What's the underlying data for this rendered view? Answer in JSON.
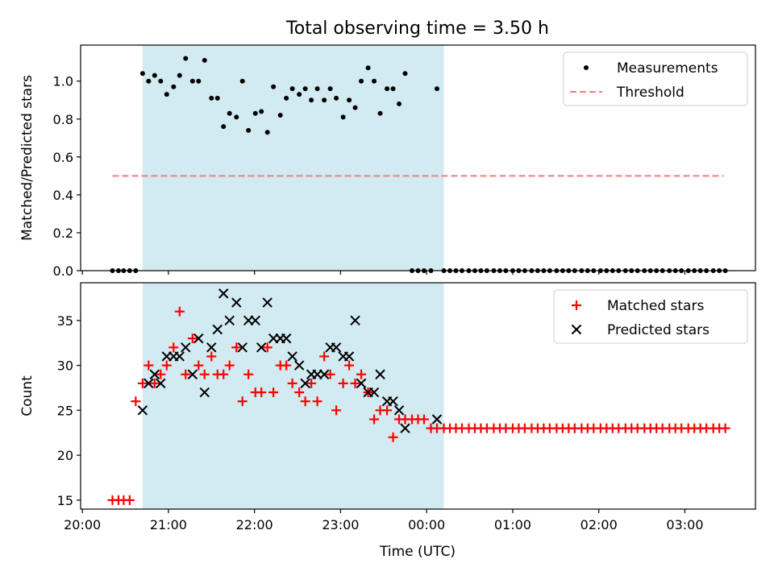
{
  "figure": {
    "title": "Total observing time = 3.50 h",
    "xlabel": "Time (UTC)",
    "xtick_labels": [
      "20:00",
      "21:00",
      "22:00",
      "23:00",
      "00:00",
      "01:00",
      "02:00",
      "03:00"
    ]
  },
  "colors": {
    "shade": "#add8e6",
    "measurements": "#000000",
    "threshold": "#f47c7c",
    "matched": "#ff0000",
    "predicted": "#000000"
  },
  "chart_data": [
    {
      "type": "scatter",
      "ylabel": "Matched/Predicted stars",
      "xlim": [
        19.98,
        27.82
      ],
      "ylim": [
        0,
        1.19
      ],
      "yticks": [
        "0.0",
        "0.2",
        "0.4",
        "0.6",
        "0.8",
        "1.0"
      ],
      "x_unit": "hours after 00:00 on first night",
      "shaded_interval": [
        20.7,
        24.2
      ],
      "threshold": {
        "name": "Threshold",
        "value": 0.5,
        "x_range": [
          20.35,
          27.45
        ]
      },
      "legend": [
        "Measurements",
        "Threshold"
      ],
      "legend_position": "upper right",
      "series": [
        {
          "name": "Measurements",
          "x": [
            20.35,
            20.42,
            20.48,
            20.55,
            20.62,
            20.7,
            20.77,
            20.84,
            20.91,
            20.98,
            21.06,
            21.13,
            21.2,
            21.28,
            21.35,
            21.42,
            21.5,
            21.57,
            21.64,
            21.71,
            21.79,
            21.86,
            21.93,
            22.01,
            22.08,
            22.15,
            22.22,
            22.3,
            22.37,
            22.44,
            22.52,
            22.59,
            22.66,
            22.73,
            22.81,
            22.88,
            22.95,
            23.03,
            23.1,
            23.17,
            23.24,
            23.32,
            23.39,
            23.46,
            23.54,
            23.61,
            23.68,
            23.75,
            23.83,
            23.9,
            23.97,
            24.05,
            24.12,
            24.2,
            24.27,
            24.34,
            24.41,
            24.49,
            24.56,
            24.63,
            24.7,
            24.78,
            24.85,
            24.92,
            25.0,
            25.07,
            25.14,
            25.22,
            25.29,
            25.36,
            25.43,
            25.51,
            25.58,
            25.65,
            25.72,
            25.8,
            25.87,
            25.94,
            26.02,
            26.09,
            26.16,
            26.23,
            26.31,
            26.38,
            26.45,
            26.53,
            26.6,
            26.67,
            26.74,
            26.82,
            26.89,
            26.96,
            27.04,
            27.11,
            27.18,
            27.25,
            27.33,
            27.4,
            27.47
          ],
          "y": [
            0,
            0,
            0,
            0,
            0,
            1.04,
            1.0,
            1.03,
            1.0,
            0.93,
            0.97,
            1.03,
            1.12,
            1.0,
            1.0,
            1.11,
            0.91,
            0.91,
            0.76,
            0.83,
            0.81,
            1.0,
            0.74,
            0.83,
            0.84,
            0.73,
            0.97,
            0.82,
            0.91,
            0.96,
            0.93,
            0.96,
            0.9,
            0.96,
            0.9,
            0.96,
            0.91,
            0.81,
            0.9,
            0.86,
            1.0,
            1.07,
            1.0,
            0.83,
            0.96,
            0.96,
            0.88,
            1.04,
            0,
            0,
            0,
            0,
            0.96,
            0,
            0,
            0,
            0,
            0,
            0,
            0,
            0,
            0,
            0,
            0,
            0,
            0,
            0,
            0,
            0,
            0,
            0,
            0,
            0,
            0,
            0,
            0,
            0,
            0,
            0,
            0,
            0,
            0,
            0,
            0,
            0,
            0,
            0,
            0,
            0,
            0,
            0,
            0,
            0,
            0,
            0,
            0,
            0,
            0,
            0
          ]
        }
      ]
    },
    {
      "type": "scatter",
      "ylabel": "Count",
      "xlim": [
        19.98,
        27.82
      ],
      "ylim": [
        14,
        39.2
      ],
      "yticks": [
        "15",
        "20",
        "25",
        "30",
        "35"
      ],
      "x_unit": "hours after 00:00 on first night",
      "shaded_interval": [
        20.7,
        24.2
      ],
      "legend": [
        "Matched stars",
        "Predicted stars"
      ],
      "legend_position": "upper right",
      "series": [
        {
          "name": "Matched stars",
          "x": [
            20.35,
            20.42,
            20.48,
            20.55,
            20.62,
            20.7,
            20.77,
            20.84,
            20.91,
            20.98,
            21.06,
            21.13,
            21.2,
            21.28,
            21.35,
            21.42,
            21.5,
            21.57,
            21.64,
            21.71,
            21.79,
            21.86,
            21.93,
            22.01,
            22.08,
            22.15,
            22.22,
            22.3,
            22.37,
            22.44,
            22.52,
            22.59,
            22.66,
            22.73,
            22.81,
            22.88,
            22.95,
            23.03,
            23.1,
            23.17,
            23.24,
            23.32,
            23.39,
            23.46,
            23.54,
            23.61,
            23.68,
            23.75,
            23.83,
            23.9,
            23.97,
            24.05,
            24.12,
            24.2,
            24.27,
            24.34,
            24.41,
            24.49,
            24.56,
            24.63,
            24.7,
            24.78,
            24.85,
            24.92,
            25.0,
            25.07,
            25.14,
            25.22,
            25.29,
            25.36,
            25.43,
            25.51,
            25.58,
            25.65,
            25.72,
            25.8,
            25.87,
            25.94,
            26.02,
            26.09,
            26.16,
            26.23,
            26.31,
            26.38,
            26.45,
            26.53,
            26.6,
            26.67,
            26.74,
            26.82,
            26.89,
            26.96,
            27.04,
            27.11,
            27.18,
            27.25,
            27.33,
            27.4,
            27.47
          ],
          "y": [
            15,
            15,
            15,
            15,
            26,
            28,
            30,
            28,
            29,
            30,
            32,
            36,
            29,
            33,
            30,
            29,
            31,
            29,
            29,
            30,
            32,
            26,
            29,
            27,
            27,
            32,
            27,
            30,
            30,
            28,
            27,
            26,
            28,
            26,
            31,
            29,
            25,
            28,
            30,
            28,
            29,
            27,
            24,
            25,
            25,
            22,
            24,
            24,
            24,
            24,
            24,
            23,
            23,
            23,
            23,
            23,
            23,
            23,
            23,
            23,
            23,
            23,
            23,
            23,
            23,
            23,
            23,
            23,
            23,
            23,
            23,
            23,
            23,
            23,
            23,
            23,
            23,
            23,
            23,
            23,
            23,
            23,
            23,
            23,
            23,
            23,
            23,
            23,
            23,
            23,
            23,
            23,
            23,
            23,
            23,
            23,
            23,
            23,
            23
          ]
        },
        {
          "name": "Predicted stars",
          "x": [
            20.7,
            20.77,
            20.84,
            20.91,
            20.98,
            21.06,
            21.13,
            21.2,
            21.28,
            21.35,
            21.42,
            21.5,
            21.57,
            21.64,
            21.71,
            21.79,
            21.86,
            21.93,
            22.01,
            22.08,
            22.15,
            22.22,
            22.3,
            22.37,
            22.44,
            22.52,
            22.59,
            22.66,
            22.73,
            22.81,
            22.88,
            22.95,
            23.03,
            23.1,
            23.17,
            23.24,
            23.32,
            23.39,
            23.46,
            23.54,
            23.61,
            23.68,
            23.75,
            23.83,
            23.9,
            23.97,
            24.05,
            24.12,
            24.2,
            24.27
          ],
          "y": [
            25,
            28,
            29,
            28,
            31,
            31,
            31,
            32,
            29,
            33,
            27,
            32,
            34,
            38,
            35,
            37,
            32,
            35,
            35,
            32,
            37,
            33,
            33,
            33,
            31,
            30,
            28,
            29,
            29,
            29,
            32,
            32,
            31,
            31,
            35,
            28,
            27,
            27,
            29,
            26,
            26,
            25,
            23,
            null,
            null,
            null,
            null,
            24,
            null,
            null
          ]
        }
      ]
    }
  ]
}
